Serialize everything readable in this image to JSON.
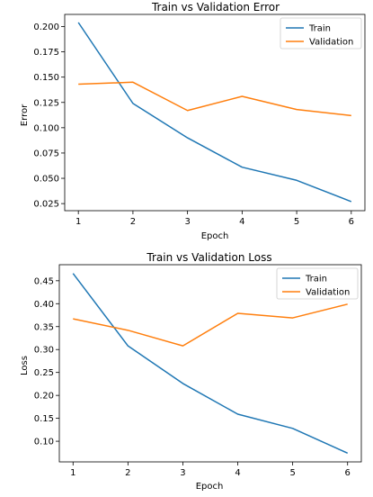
{
  "chart_data": [
    {
      "type": "line",
      "title": "Train vs Validation Error",
      "xlabel": "Epoch",
      "ylabel": "Error",
      "x": [
        1,
        2,
        3,
        4,
        5,
        6
      ],
      "xticks": [
        "1",
        "2",
        "3",
        "4",
        "5",
        "6"
      ],
      "yticks": [
        "0.025",
        "0.050",
        "0.075",
        "0.100",
        "0.125",
        "0.150",
        "0.175",
        "0.200"
      ],
      "ylim": [
        0.018,
        0.212
      ],
      "xlim": [
        0.75,
        6.25
      ],
      "legend_position": "top-right",
      "series": [
        {
          "name": "Train",
          "color": "#1f77b4",
          "values": [
            0.204,
            0.124,
            0.09,
            0.061,
            0.048,
            0.027
          ]
        },
        {
          "name": "Validation",
          "color": "#ff7f0e",
          "values": [
            0.143,
            0.145,
            0.117,
            0.131,
            0.118,
            0.112
          ]
        }
      ]
    },
    {
      "type": "line",
      "title": "Train vs Validation Loss",
      "xlabel": "Epoch",
      "ylabel": "Loss",
      "x": [
        1,
        2,
        3,
        4,
        5,
        6
      ],
      "xticks": [
        "1",
        "2",
        "3",
        "4",
        "5",
        "6"
      ],
      "yticks": [
        "0.10",
        "0.15",
        "0.20",
        "0.25",
        "0.30",
        "0.35",
        "0.40",
        "0.45"
      ],
      "ylim": [
        0.055,
        0.485
      ],
      "xlim": [
        0.75,
        6.25
      ],
      "legend_position": "top-right",
      "series": [
        {
          "name": "Train",
          "color": "#1f77b4",
          "values": [
            0.466,
            0.308,
            0.226,
            0.159,
            0.128,
            0.074
          ]
        },
        {
          "name": "Validation",
          "color": "#ff7f0e",
          "values": [
            0.367,
            0.342,
            0.308,
            0.379,
            0.369,
            0.399
          ]
        }
      ]
    }
  ]
}
